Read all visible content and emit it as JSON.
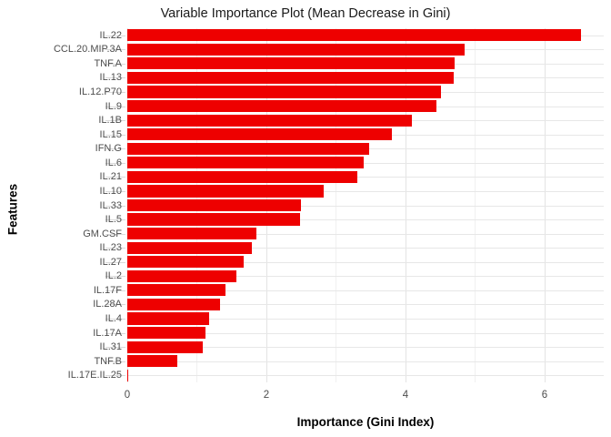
{
  "title": "Variable Importance Plot (Mean Decrease in Gini)",
  "chart_data": {
    "type": "bar",
    "orientation": "horizontal",
    "title": "Variable Importance Plot (Mean Decrease in Gini)",
    "xlabel": "Importance (Gini Index)",
    "ylabel": "Features",
    "xlim": [
      0,
      6.85
    ],
    "x_ticks": [
      0,
      2,
      4,
      6
    ],
    "x_minor_ticks": [
      1,
      3,
      5
    ],
    "grid": true,
    "legend": "none",
    "bar_color": "#ee0000",
    "categories": [
      "IL.22",
      "CCL.20.MIP.3A",
      "TNF.A",
      "IL.13",
      "IL.12.P70",
      "IL.9",
      "IL.1B",
      "IL.15",
      "IFN.G",
      "IL.6",
      "IL.21",
      "IL.10",
      "IL.33",
      "IL.5",
      "GM.CSF",
      "IL.23",
      "IL.27",
      "IL.2",
      "IL.17F",
      "IL.28A",
      "IL.4",
      "IL.17A",
      "IL.31",
      "TNF.B",
      "IL.17E.IL.25"
    ],
    "values": [
      6.52,
      4.85,
      4.71,
      4.69,
      4.51,
      4.44,
      4.09,
      3.81,
      3.48,
      3.4,
      3.31,
      2.82,
      2.5,
      2.49,
      1.86,
      1.79,
      1.67,
      1.57,
      1.41,
      1.33,
      1.18,
      1.12,
      1.08,
      0.72,
      0.01
    ]
  },
  "colors": {
    "bar": "#ee0000",
    "grid_major": "#e3e3e3",
    "grid_minor": "#f0f0f0",
    "axis_text": "#4d4d4d"
  }
}
